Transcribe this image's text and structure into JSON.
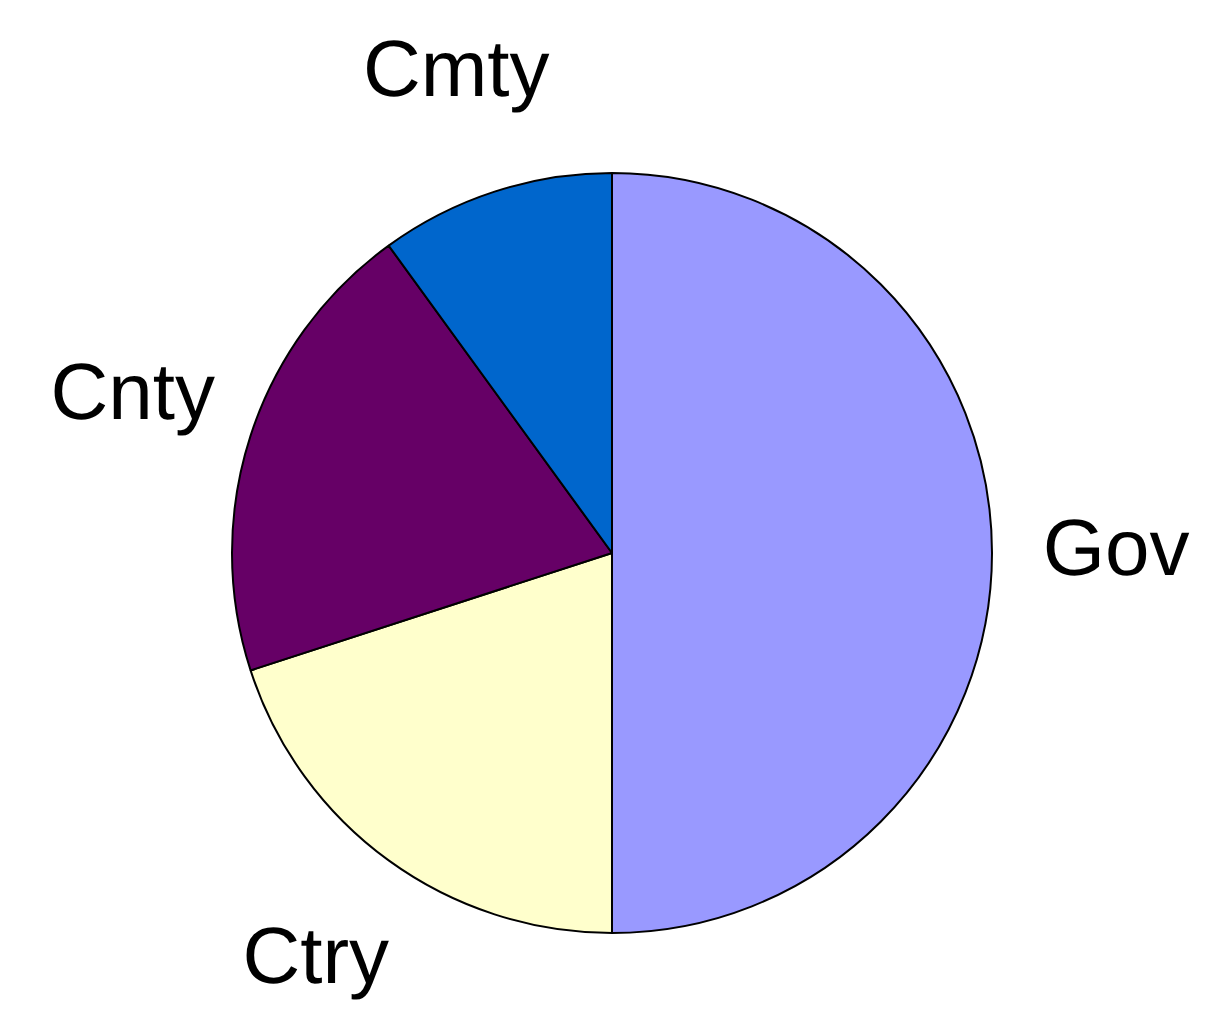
{
  "chart_data": {
    "type": "pie",
    "categories": [
      "Gov",
      "Ctry",
      "Cnty",
      "Cmty"
    ],
    "values": [
      50,
      20,
      20,
      10
    ],
    "colors": [
      "#9999ff",
      "#ffffcc",
      "#660066",
      "#0066cc"
    ],
    "legend": false
  }
}
